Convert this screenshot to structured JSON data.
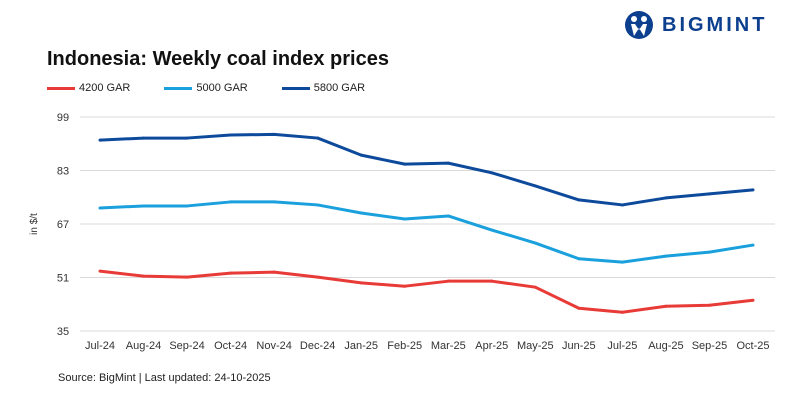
{
  "brand": {
    "name": "BIGMINT",
    "color": "#0d3f8f"
  },
  "chart_data": {
    "type": "line",
    "title": "Indonesia: Weekly coal index prices",
    "ylabel": "in $/t",
    "xlabel": "",
    "ylim": [
      35,
      99
    ],
    "yticks": [
      35,
      51,
      67,
      83,
      99
    ],
    "grid": true,
    "legend_position": "top-left",
    "categories": [
      "Jul-24",
      "Aug-24",
      "Sep-24",
      "Oct-24",
      "Nov-24",
      "Dec-24",
      "Jan-25",
      "Feb-25",
      "Mar-25",
      "Apr-25",
      "May-25",
      "Jun-25",
      "Jul-25",
      "Aug-25",
      "Sep-25",
      "Oct-25"
    ],
    "series": [
      {
        "name": "4200 GAR",
        "color": "#e83a36",
        "values": [
          52.9,
          51.4,
          51.1,
          52.3,
          52.6,
          51.1,
          49.4,
          48.4,
          49.9,
          49.9,
          48.1,
          41.8,
          40.6,
          42.4,
          42.7,
          44.2
        ]
      },
      {
        "name": "5000 GAR",
        "color": "#1aa0dc",
        "values": [
          71.8,
          72.4,
          72.4,
          73.6,
          73.6,
          72.7,
          70.3,
          68.5,
          69.4,
          65.2,
          61.3,
          56.6,
          55.6,
          57.4,
          58.6,
          60.7
        ]
      },
      {
        "name": "5800 GAR",
        "color": "#0d4a9c",
        "values": [
          92.1,
          92.7,
          92.7,
          93.6,
          93.8,
          92.7,
          87.6,
          84.9,
          85.2,
          82.3,
          78.4,
          74.2,
          72.7,
          74.8,
          76.0,
          77.2
        ]
      }
    ]
  },
  "footer": {
    "source": "Source: BigMint | Last updated: 24-10-2025"
  }
}
